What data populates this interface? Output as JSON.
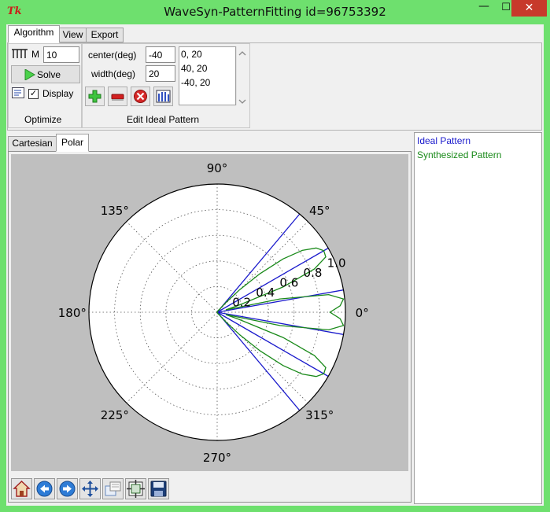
{
  "window": {
    "title": "WaveSyn-PatternFitting id=96753392",
    "icon_text": "Tk",
    "min_glyph": "—",
    "max_glyph": "☐",
    "close_glyph": "✕"
  },
  "ribbon": {
    "tabs": [
      "Algorithm",
      "View",
      "Export"
    ],
    "active_tab": "Algorithm",
    "optimize": {
      "m_label": "M",
      "m_value": "10",
      "solve_label": "Solve",
      "display_label": "Display",
      "display_checked": true,
      "group_label": "Optimize"
    },
    "edit_ideal": {
      "center_label": "center(deg)",
      "center_value": "-40",
      "width_label": "width(deg)",
      "width_value": "20",
      "list_items": [
        "0, 20",
        "40, 20",
        "-40, 20"
      ],
      "group_label": "Edit Ideal Pattern",
      "buttons": [
        "add-icon",
        "minus-icon",
        "delete-icon",
        "bar-chart-icon"
      ]
    }
  },
  "plot_tabs": [
    "Cartesian",
    "Polar"
  ],
  "active_plot_tab": "Polar",
  "legend": {
    "items": [
      {
        "label": "Ideal Pattern",
        "color": "#1a1acc"
      },
      {
        "label": "Synthesized Pattern",
        "color": "#1a8a1a"
      }
    ]
  },
  "toolbar": {
    "buttons": [
      "home-icon",
      "back-icon",
      "forward-icon",
      "pan-icon",
      "zoom-icon",
      "configure-icon",
      "save-icon"
    ]
  },
  "chart_data": {
    "type": "line",
    "coordinate_system": "polar",
    "angle_tick_labels": [
      "0°",
      "45°",
      "90°",
      "135°",
      "180°",
      "225°",
      "270°",
      "315°"
    ],
    "radial_tick_labels": [
      "0.2",
      "0.4",
      "0.6",
      "0.8",
      "1.0"
    ],
    "radial_ticks": [
      0.2,
      0.4,
      0.6,
      0.8,
      1.0
    ],
    "rlim": [
      0,
      1.0
    ],
    "grid": true,
    "series": [
      {
        "name": "Ideal Pattern",
        "color": "#1a1acc",
        "theta_deg": [
          0,
          10,
          10,
          30,
          30,
          50,
          50,
          0,
          0,
          -10,
          -10,
          -30,
          -30,
          -50,
          -50,
          0
        ],
        "r": [
          0,
          0,
          1.0,
          1.0,
          0,
          0,
          1.0,
          0,
          0,
          0,
          1.0,
          1.0,
          0,
          0,
          1.0,
          0
        ],
        "segments": [
          {
            "theta_deg": [
              10,
              0
            ],
            "r": [
              1.0,
              0
            ]
          },
          {
            "theta_deg": [
              -10,
              0
            ],
            "r": [
              1.0,
              0
            ]
          },
          {
            "theta_deg": [
              30,
              0
            ],
            "r": [
              1.0,
              0
            ]
          },
          {
            "theta_deg": [
              -30,
              0
            ],
            "r": [
              1.0,
              0
            ]
          },
          {
            "theta_deg": [
              50,
              0
            ],
            "r": [
              1.0,
              0
            ]
          },
          {
            "theta_deg": [
              -50,
              0
            ],
            "r": [
              1.0,
              0
            ]
          }
        ]
      },
      {
        "name": "Synthesized Pattern",
        "color": "#1a8a1a",
        "theta_deg": [
          0,
          3,
          6,
          9,
          12,
          15,
          18,
          21,
          24,
          27,
          30,
          33,
          36,
          39,
          42,
          45,
          48,
          51,
          54,
          57,
          60,
          63,
          66,
          69,
          72,
          75,
          78,
          81,
          84,
          87,
          90
        ],
        "r": [
          0.88,
          0.96,
          0.99,
          0.88,
          0.5,
          0.07,
          0.18,
          0.55,
          0.83,
          0.95,
          0.96,
          0.92,
          0.82,
          0.66,
          0.45,
          0.25,
          0.1,
          0.03,
          0.02,
          0.02,
          0.01,
          0.01,
          0.0,
          0.0,
          0.0,
          0.0,
          0.0,
          0.0,
          0.0,
          0.0,
          0.0
        ],
        "symmetric": true
      }
    ]
  }
}
